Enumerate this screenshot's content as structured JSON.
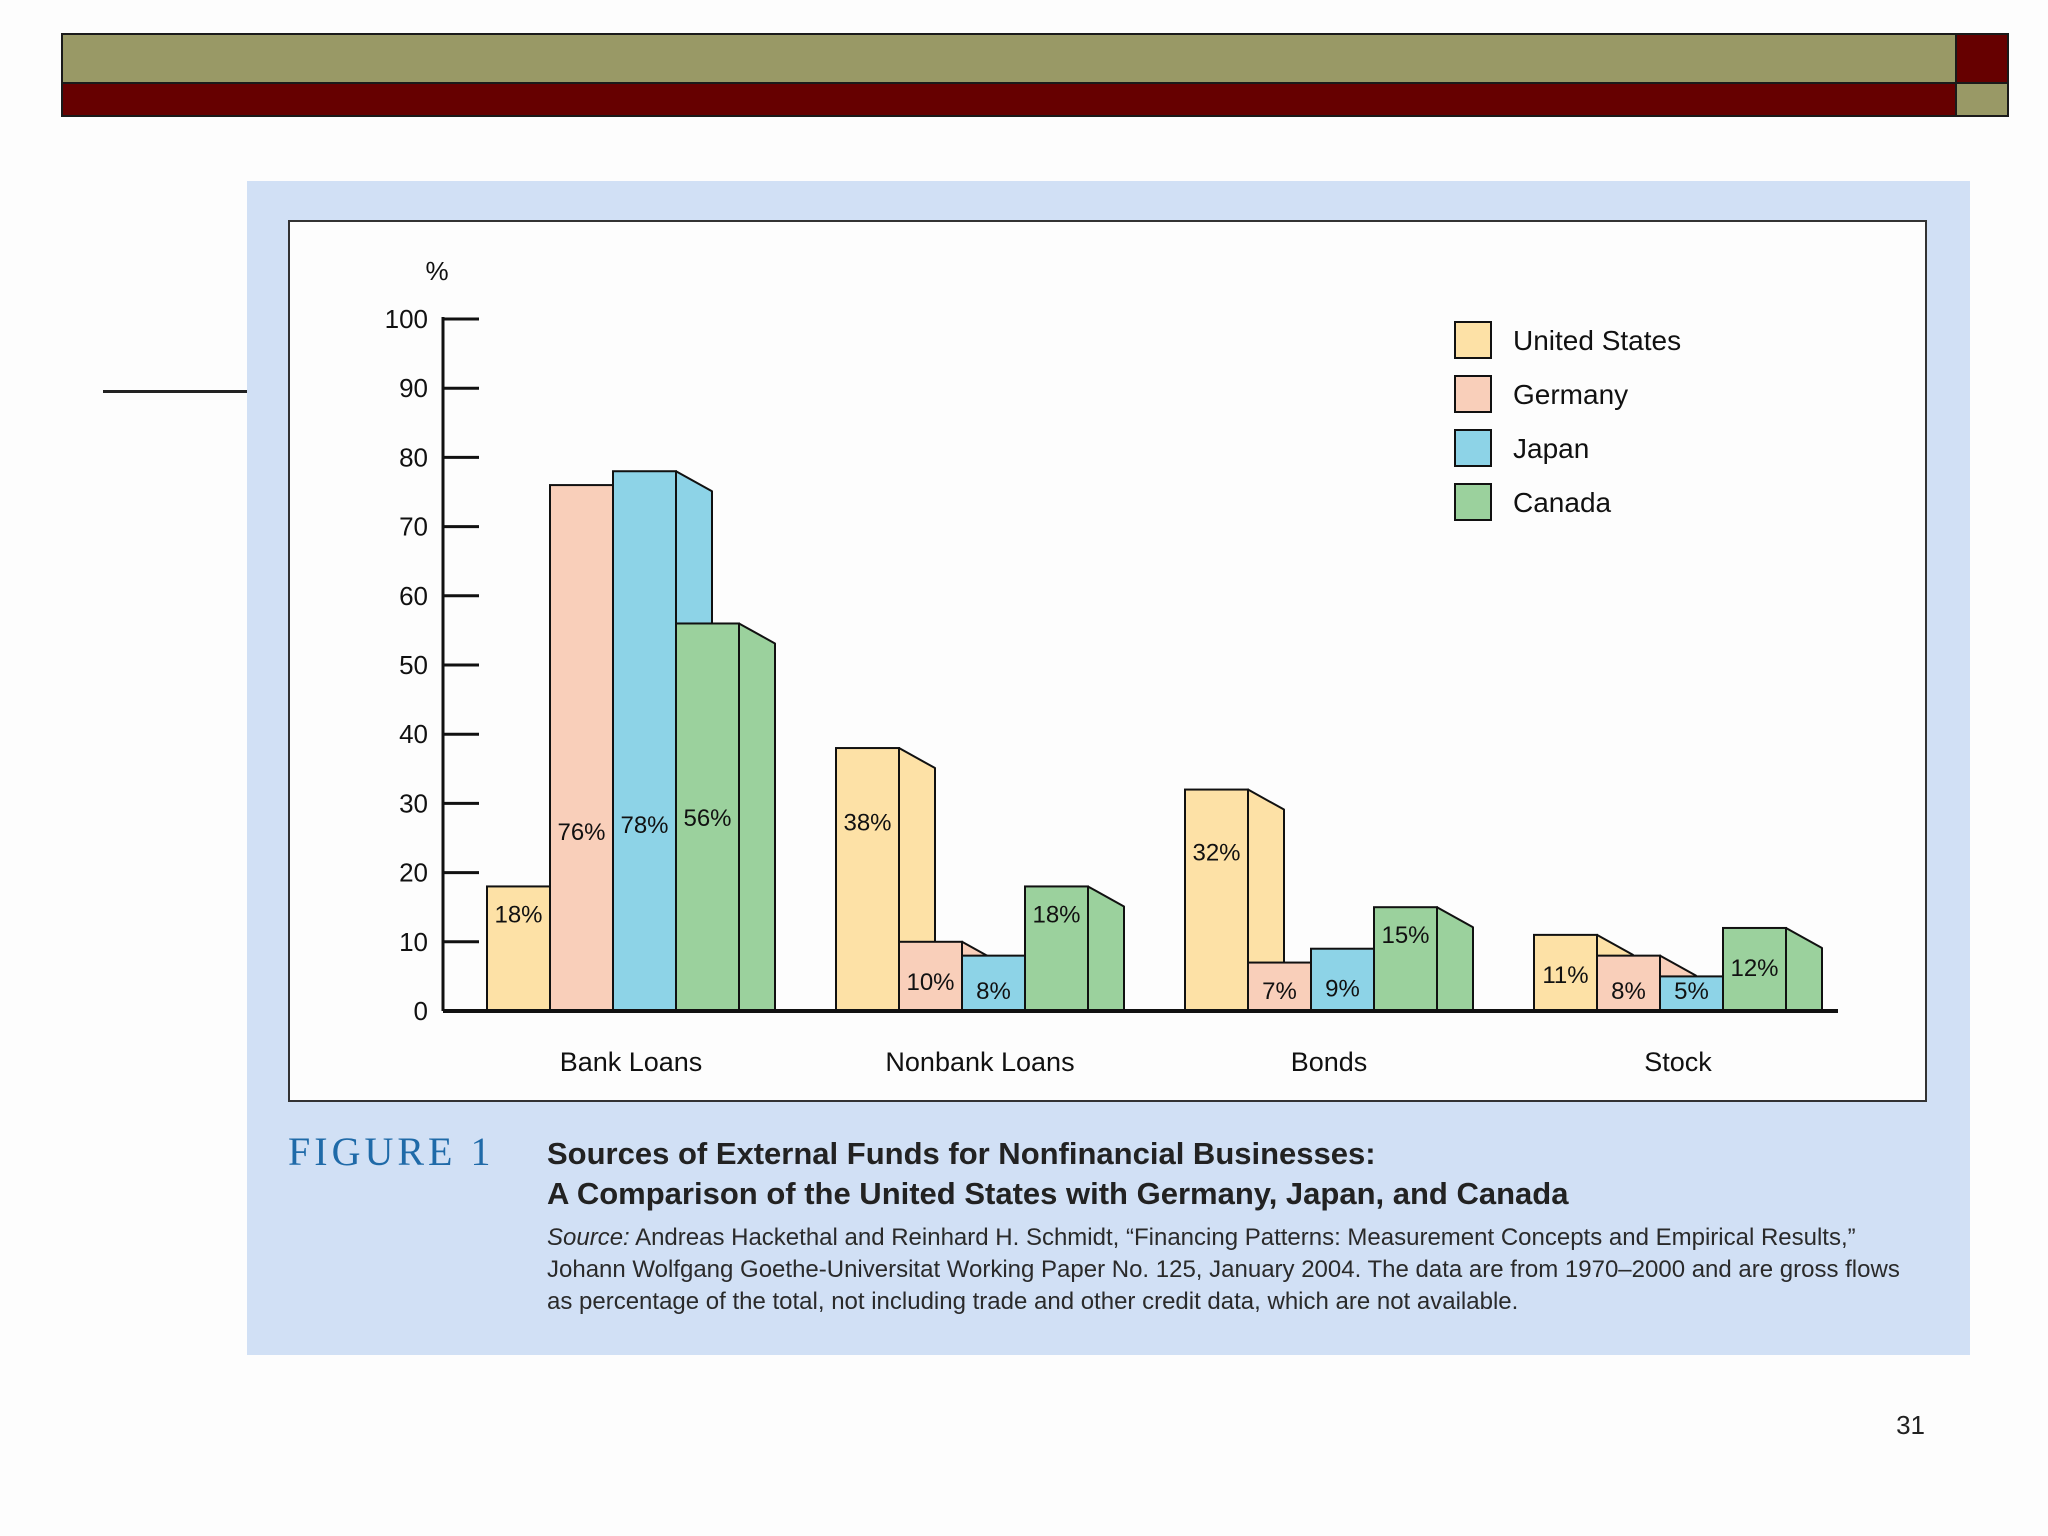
{
  "colors": {
    "header_olive": "#999966",
    "header_maroon": "#660000",
    "panel_bg": "#d1e0f5",
    "figure_label": "#1f6aa8"
  },
  "chart_data": {
    "type": "bar",
    "style": "3d-grouped",
    "ylabel": "%",
    "ylim": [
      0,
      100
    ],
    "yticks": [
      0,
      10,
      20,
      30,
      40,
      50,
      60,
      70,
      80,
      90,
      100
    ],
    "legend_position": "top-right",
    "categories": [
      "Bank Loans",
      "Nonbank Loans",
      "Bonds",
      "Stock"
    ],
    "series": [
      {
        "name": "United States",
        "color": "#fde1a6",
        "values": [
          18,
          38,
          32,
          11
        ],
        "labels": [
          "18%",
          "38%",
          "32%",
          "11%"
        ]
      },
      {
        "name": "Germany",
        "color": "#f9cfba",
        "values": [
          76,
          10,
          7,
          8
        ],
        "labels": [
          "76%",
          "10%",
          "7%",
          "8%"
        ]
      },
      {
        "name": "Japan",
        "color": "#8dd3e7",
        "values": [
          78,
          8,
          9,
          5
        ],
        "labels": [
          "78%",
          "8%",
          "9%",
          "5%"
        ]
      },
      {
        "name": "Canada",
        "color": "#9bd19d",
        "values": [
          56,
          18,
          15,
          12
        ],
        "labels": [
          "56%",
          "18%",
          "15%",
          "12%"
        ]
      }
    ]
  },
  "caption": {
    "label": "FIGURE 1",
    "title_line1": "Sources of External Funds for Nonfinancial Businesses:",
    "title_line2": "A Comparison of the United States with Germany, Japan, and Canada",
    "source_label": "Source:",
    "source_text": "Andreas Hackethal and Reinhard H. Schmidt, “Financing Patterns: Measurement Concepts and Empirical Results,” Johann Wolfgang Goethe-Universitat Working Paper No. 125, January 2004. The data are from 1970–2000 and are gross flows as percentage of the total, not including trade and other credit data, which are not available."
  },
  "page_number": "31"
}
